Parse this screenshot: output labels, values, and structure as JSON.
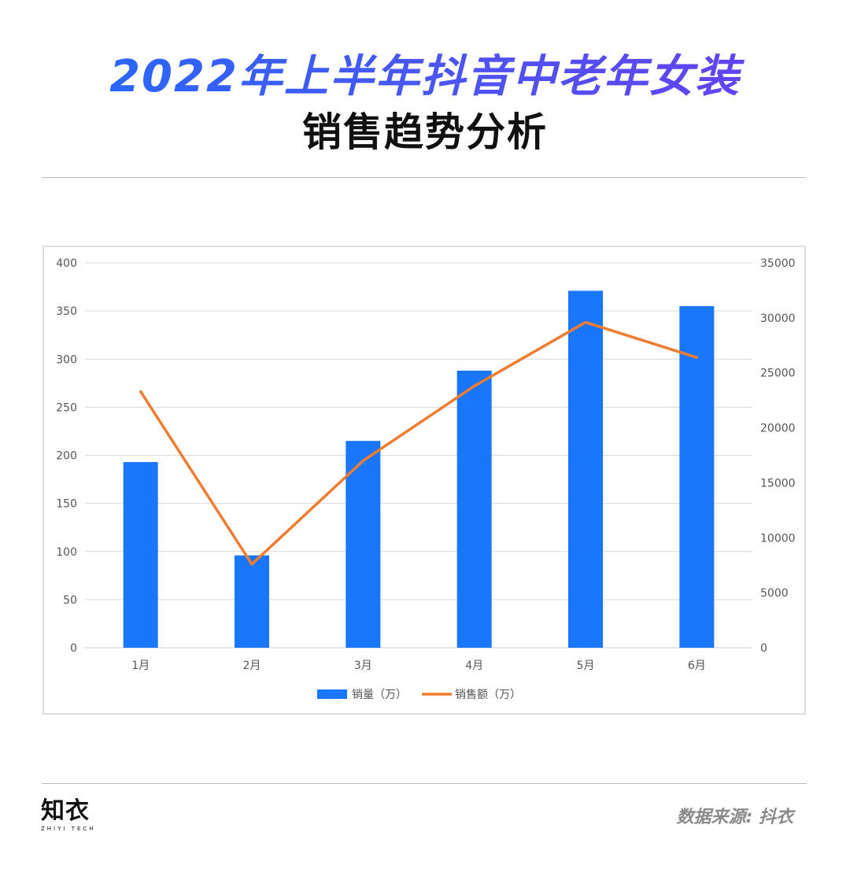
{
  "header": {
    "title_line1": "2022年上半年抖音中老年女装",
    "title_line2": "销售趋势分析"
  },
  "footer": {
    "logo_text": "知衣",
    "logo_subtext": "ZHIYI TECH",
    "source": "数据来源: 抖衣"
  },
  "colors": {
    "bar": "#1a76fb",
    "line": "#ef7d31",
    "grid": "#d9d9d9",
    "axis_text": "#555555"
  },
  "chart_data": {
    "type": "bar",
    "title": "",
    "categories": [
      "1月",
      "2月",
      "3月",
      "4月",
      "5月",
      "6月"
    ],
    "series": [
      {
        "name": "销量（万）",
        "type": "bar",
        "axis": "left",
        "values": [
          193,
          96,
          215,
          288,
          371,
          355
        ]
      },
      {
        "name": "销售额（万）",
        "type": "line",
        "axis": "right",
        "values": [
          23300,
          7600,
          17000,
          23800,
          29600,
          26400
        ]
      }
    ],
    "y_left": {
      "min": 0,
      "max": 400,
      "ticks": [
        0,
        50,
        100,
        150,
        200,
        250,
        300,
        350,
        400
      ]
    },
    "y_right": {
      "min": 0,
      "max": 35000,
      "ticks": [
        0,
        5000,
        10000,
        15000,
        20000,
        25000,
        30000,
        35000
      ]
    },
    "grid": true,
    "legend_position": "bottom"
  }
}
